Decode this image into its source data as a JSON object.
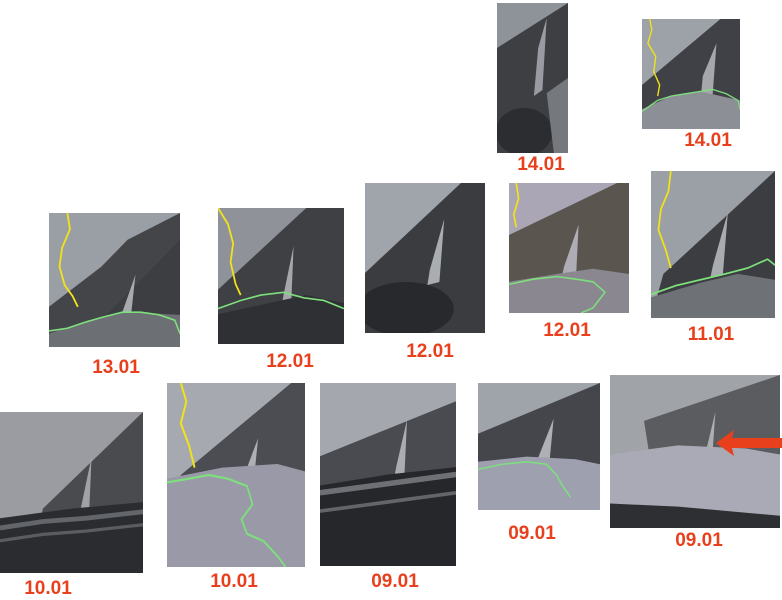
{
  "labels": {
    "r1a": "14.01",
    "r1b": "14.01",
    "r2a": "13.01",
    "r2b": "12.01",
    "r2c": "12.01",
    "r2d": "12.01",
    "r2e": "11.01",
    "r3a": "10.01",
    "r3b": "10.01",
    "r3c": "09.01",
    "r3d": "09.01",
    "r3e": "09.01"
  },
  "colors": {
    "label": "#e8401c",
    "arrow": "#e8401c",
    "border_yellow": "#f2e21a",
    "border_green": "#7de07d"
  }
}
